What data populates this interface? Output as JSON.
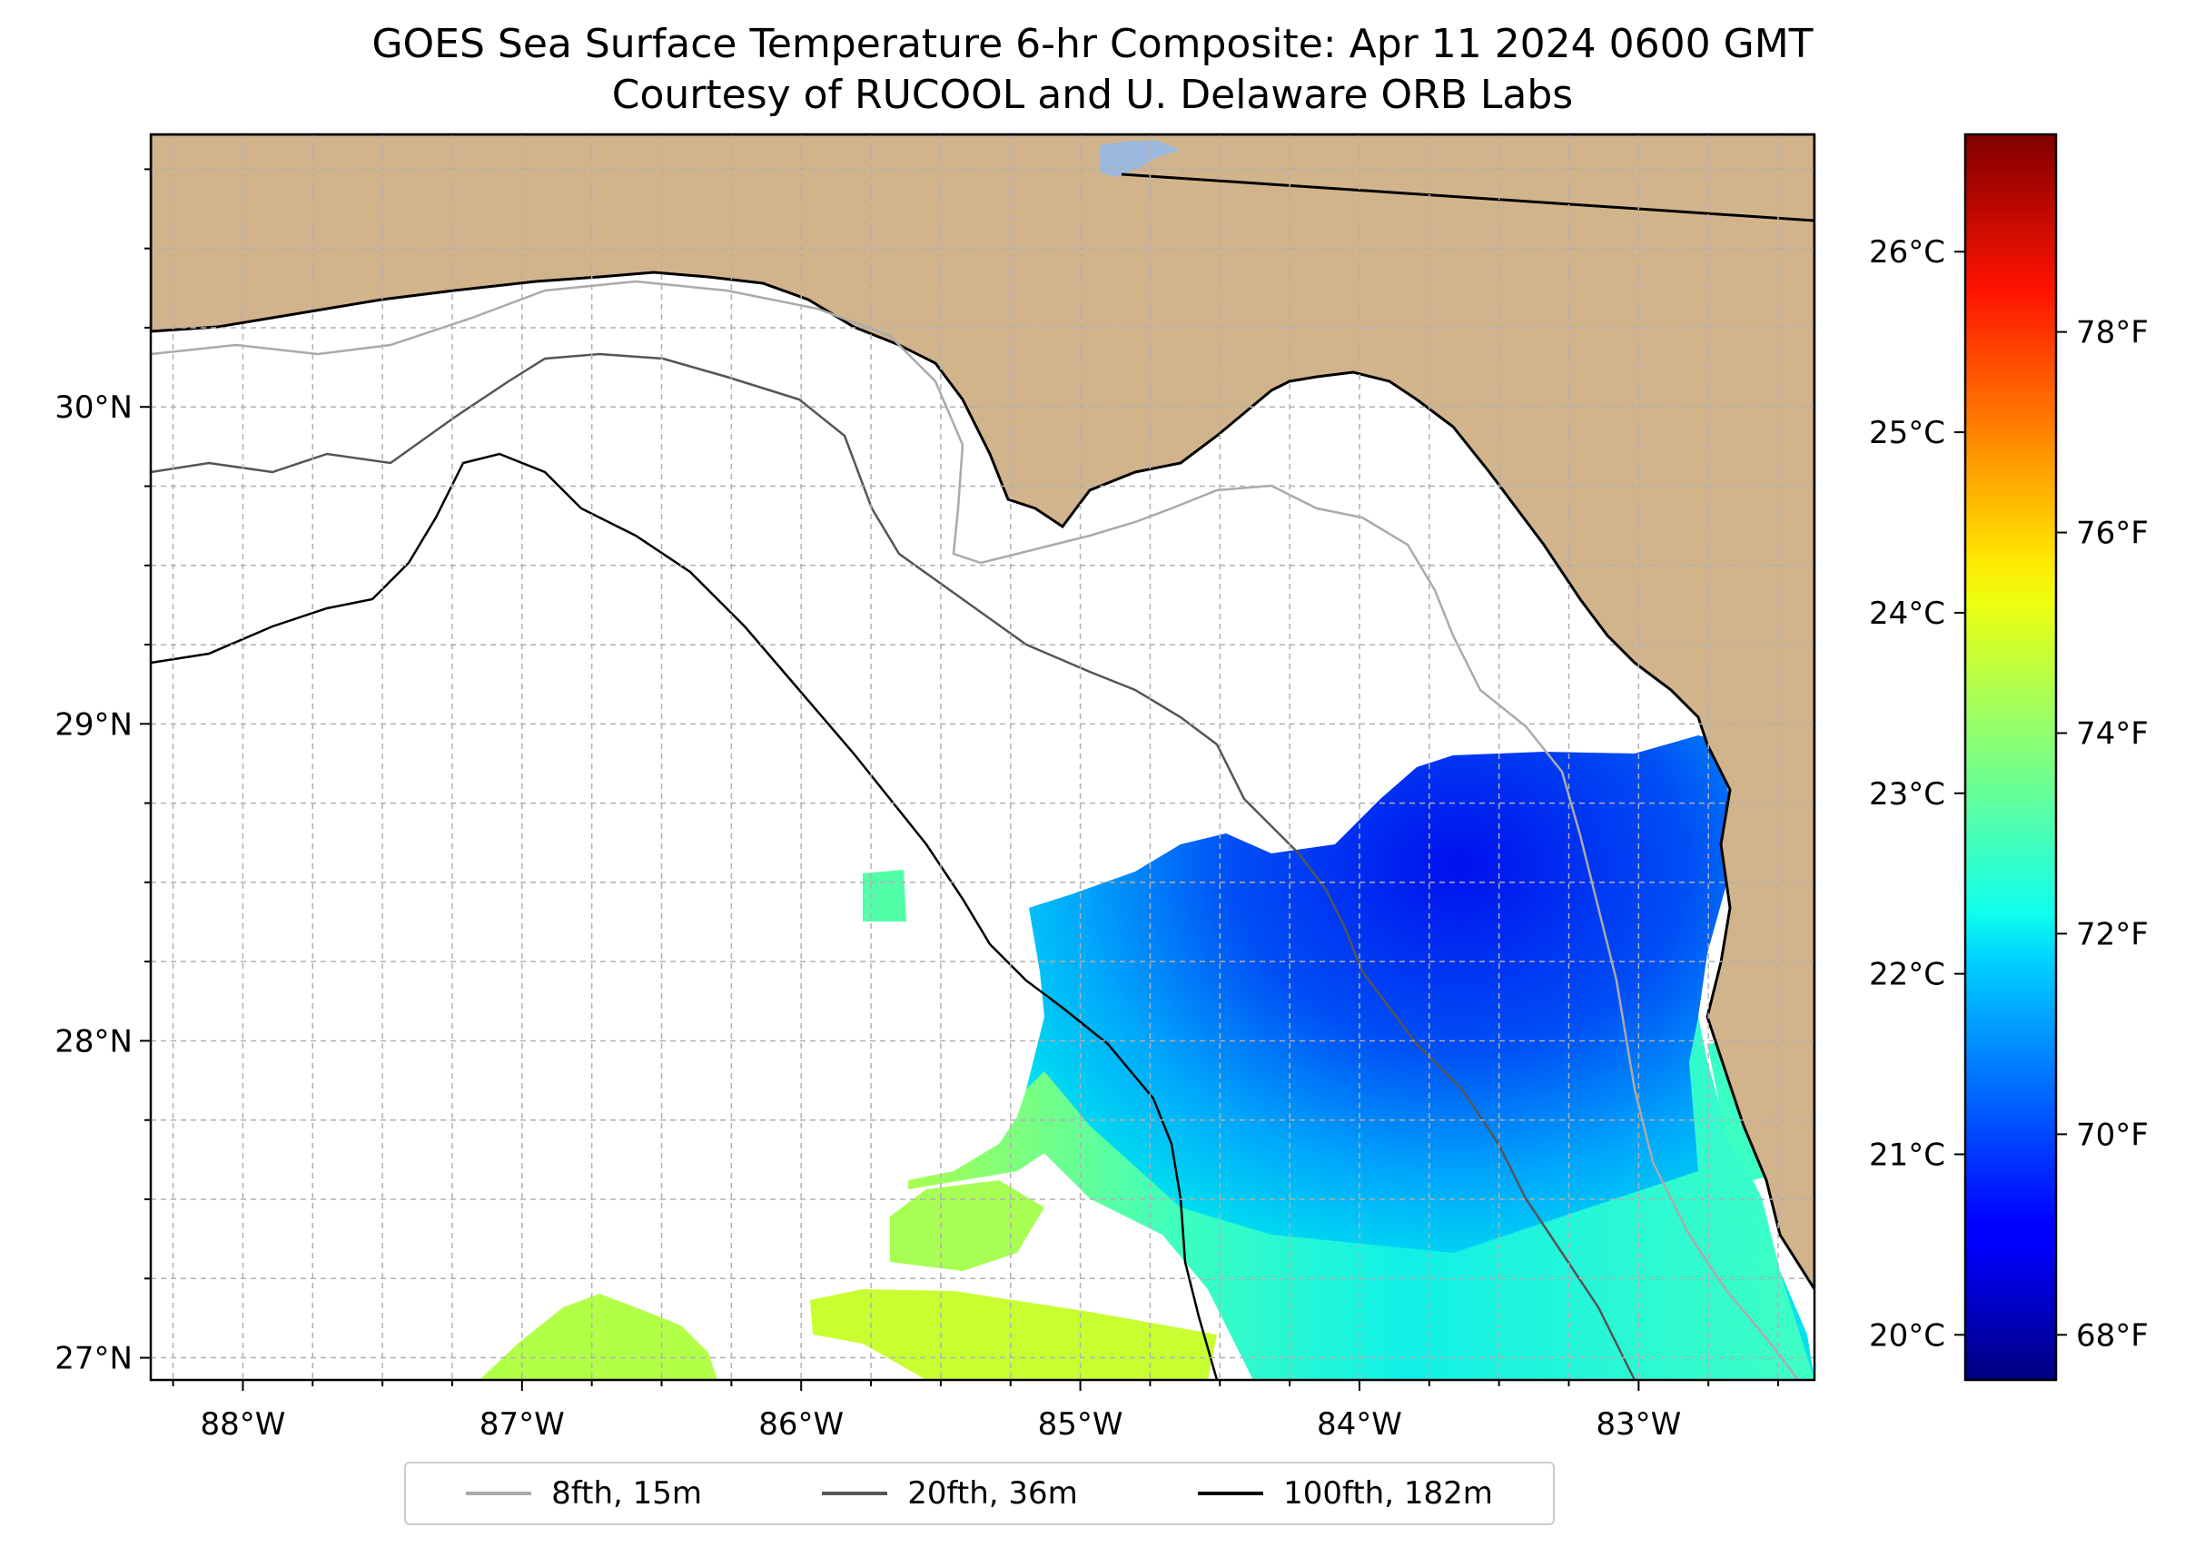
{
  "title": {
    "line1": "GOES Sea Surface Temperature 6-hr Composite: Apr 11 2024 0600 GMT",
    "line2": "Courtesy of RUCOOL and U. Delaware ORB Labs"
  },
  "map": {
    "lon_range": [
      -88.33,
      -82.37
    ],
    "lat_range": [
      26.93,
      30.86
    ],
    "lon_ticks": [
      {
        "value": -88,
        "label": "88°W"
      },
      {
        "value": -87,
        "label": "87°W"
      },
      {
        "value": -86,
        "label": "86°W"
      },
      {
        "value": -85,
        "label": "85°W"
      },
      {
        "value": -84,
        "label": "84°W"
      },
      {
        "value": -83,
        "label": "83°W"
      }
    ],
    "lat_ticks": [
      {
        "value": 27,
        "label": "27°N"
      },
      {
        "value": 28,
        "label": "28°N"
      },
      {
        "value": 29,
        "label": "29°N"
      },
      {
        "value": 30,
        "label": "30°N"
      }
    ],
    "land_color": "#d2b48c",
    "gridlines": true
  },
  "colorbar": {
    "celsius_range": [
      19.75,
      26.65
    ],
    "celsius_ticks": [
      {
        "value": 20,
        "label": "20°C"
      },
      {
        "value": 21,
        "label": "21°C"
      },
      {
        "value": 22,
        "label": "22°C"
      },
      {
        "value": 23,
        "label": "23°C"
      },
      {
        "value": 24,
        "label": "24°C"
      },
      {
        "value": 25,
        "label": "25°C"
      },
      {
        "value": 26,
        "label": "26°C"
      }
    ],
    "fahrenheit_ticks": [
      {
        "value": 68,
        "label": "68°F"
      },
      {
        "value": 70,
        "label": "70°F"
      },
      {
        "value": 72,
        "label": "72°F"
      },
      {
        "value": 74,
        "label": "74°F"
      },
      {
        "value": 76,
        "label": "76°F"
      },
      {
        "value": 78,
        "label": "78°F"
      }
    ],
    "colormap": "jet"
  },
  "legend": {
    "items": [
      {
        "label": "8fth, 15m",
        "color": "#aaaaaa"
      },
      {
        "label": "20fth, 36m",
        "color": "#555555"
      },
      {
        "label": "100fth, 182m",
        "color": "#000000"
      }
    ]
  }
}
